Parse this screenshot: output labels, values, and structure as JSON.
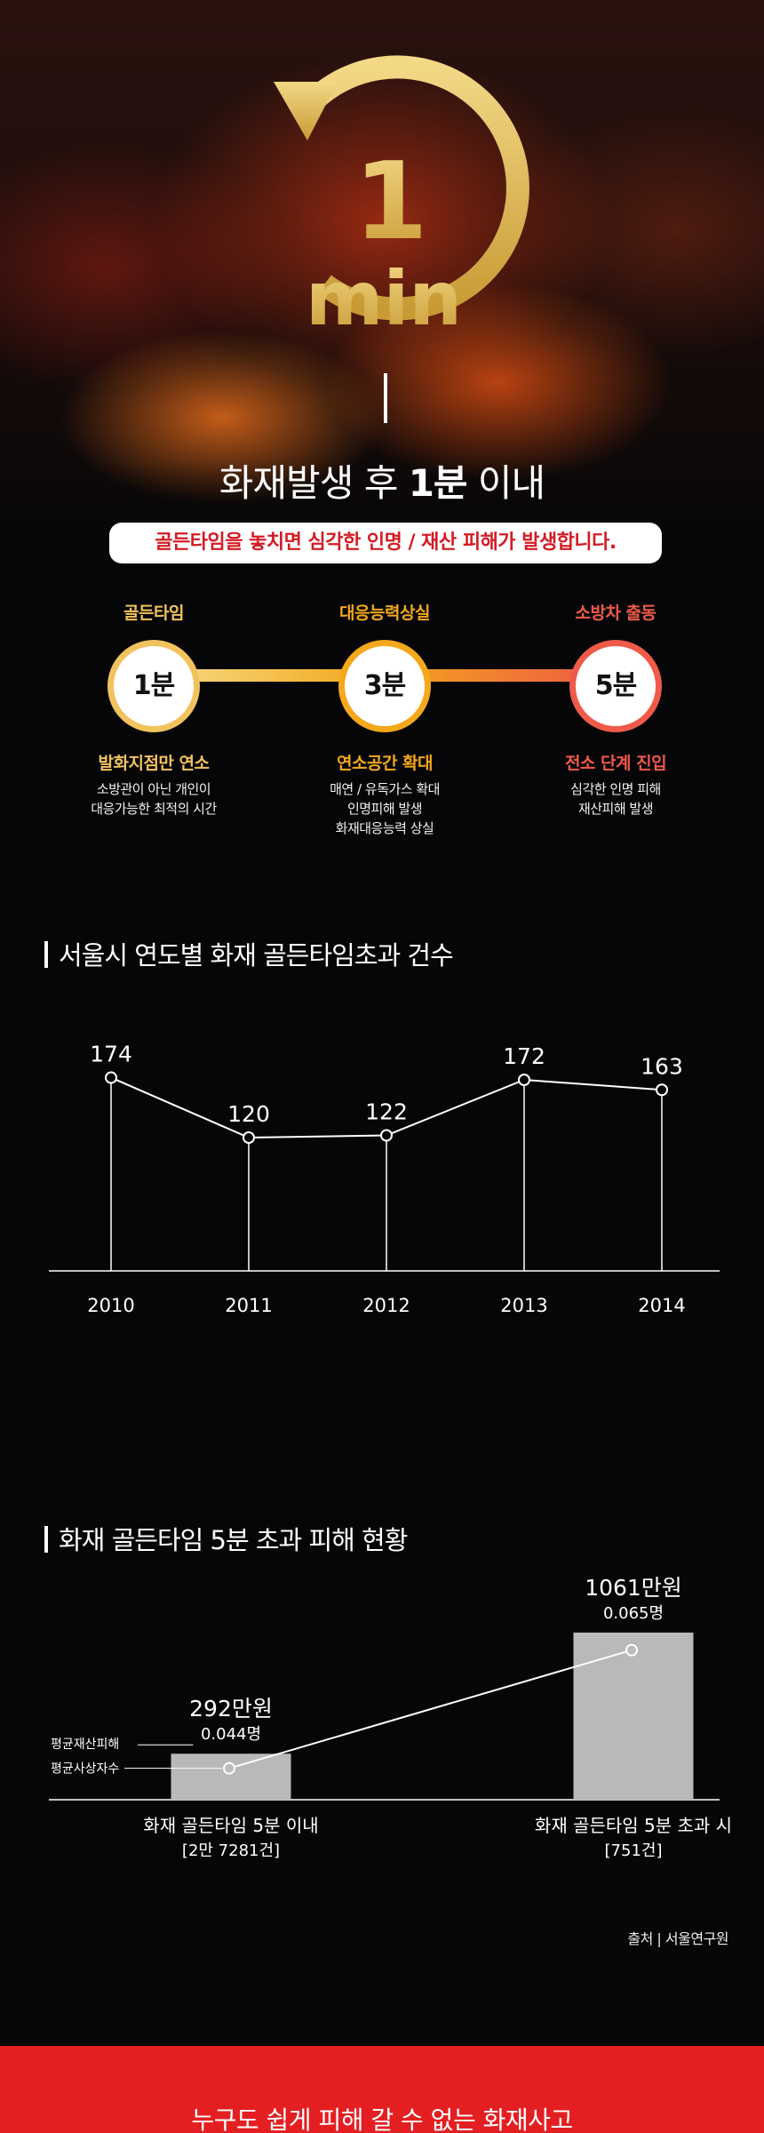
{
  "hero": {
    "clock_number": "1",
    "clock_unit": "min",
    "title_part1": "화재발생 후 ",
    "title_strong": "1분",
    "title_part2": " 이내",
    "subtitle": "골든타임을 놓치면 심각한 인명 / 재산 피해가 발생합니다."
  },
  "timeline": {
    "steps": [
      {
        "heading": "골든타임",
        "circle": "1분",
        "sub": "발화지점만 연소",
        "desc": [
          "소방관이 아닌 개인이",
          "대응가능한 최적의 시간"
        ]
      },
      {
        "heading": "대응능력상실",
        "circle": "3분",
        "sub": "연소공간 확대",
        "desc": [
          "매연 / 유독가스 확대",
          "인명피해 발생",
          "화재대응능력 상실"
        ]
      },
      {
        "heading": "소방차 출동",
        "circle": "5분",
        "sub": "전소 단계 진입",
        "desc": [
          "심각한 인명 피해",
          "재산피해 발생"
        ]
      }
    ],
    "colors": [
      "#f1c35e",
      "#f4a81c",
      "#ef5a49"
    ]
  },
  "chart_data": [
    {
      "type": "line",
      "title": "서울시 연도별 화재 골든타임초과 건수",
      "x": [
        "2010",
        "2011",
        "2012",
        "2013",
        "2014"
      ],
      "values": [
        174,
        120,
        122,
        172,
        163
      ],
      "ylim": [
        0,
        200
      ],
      "grid": false,
      "xlabel": "",
      "ylabel": ""
    },
    {
      "type": "bar",
      "title": "화재 골든타임 5분 초과 피해 현황",
      "categories": [
        "화재 골든타임 5분 이내",
        "화재 골든타임 5분 초과 시"
      ],
      "category_counts": [
        "[2만 7281건]",
        "[751건]"
      ],
      "series": [
        {
          "name": "평균재산피해",
          "values": [
            292,
            1061
          ],
          "labels": [
            "292만원",
            "1061만원"
          ],
          "type": "bar"
        },
        {
          "name": "평균사상자수",
          "values": [
            0.044,
            0.065
          ],
          "labels": [
            "0.044명",
            "0.065명"
          ],
          "type": "line"
        }
      ],
      "legend": "left"
    }
  ],
  "source": "출처 | 서울연구원",
  "footer": {
    "text": "누구도 쉽게 피해 갈 수 없는 화재사고"
  },
  "colors": {
    "gold": "#e8c15a",
    "red": "#e41f22",
    "bar": "#b9b9b9"
  }
}
